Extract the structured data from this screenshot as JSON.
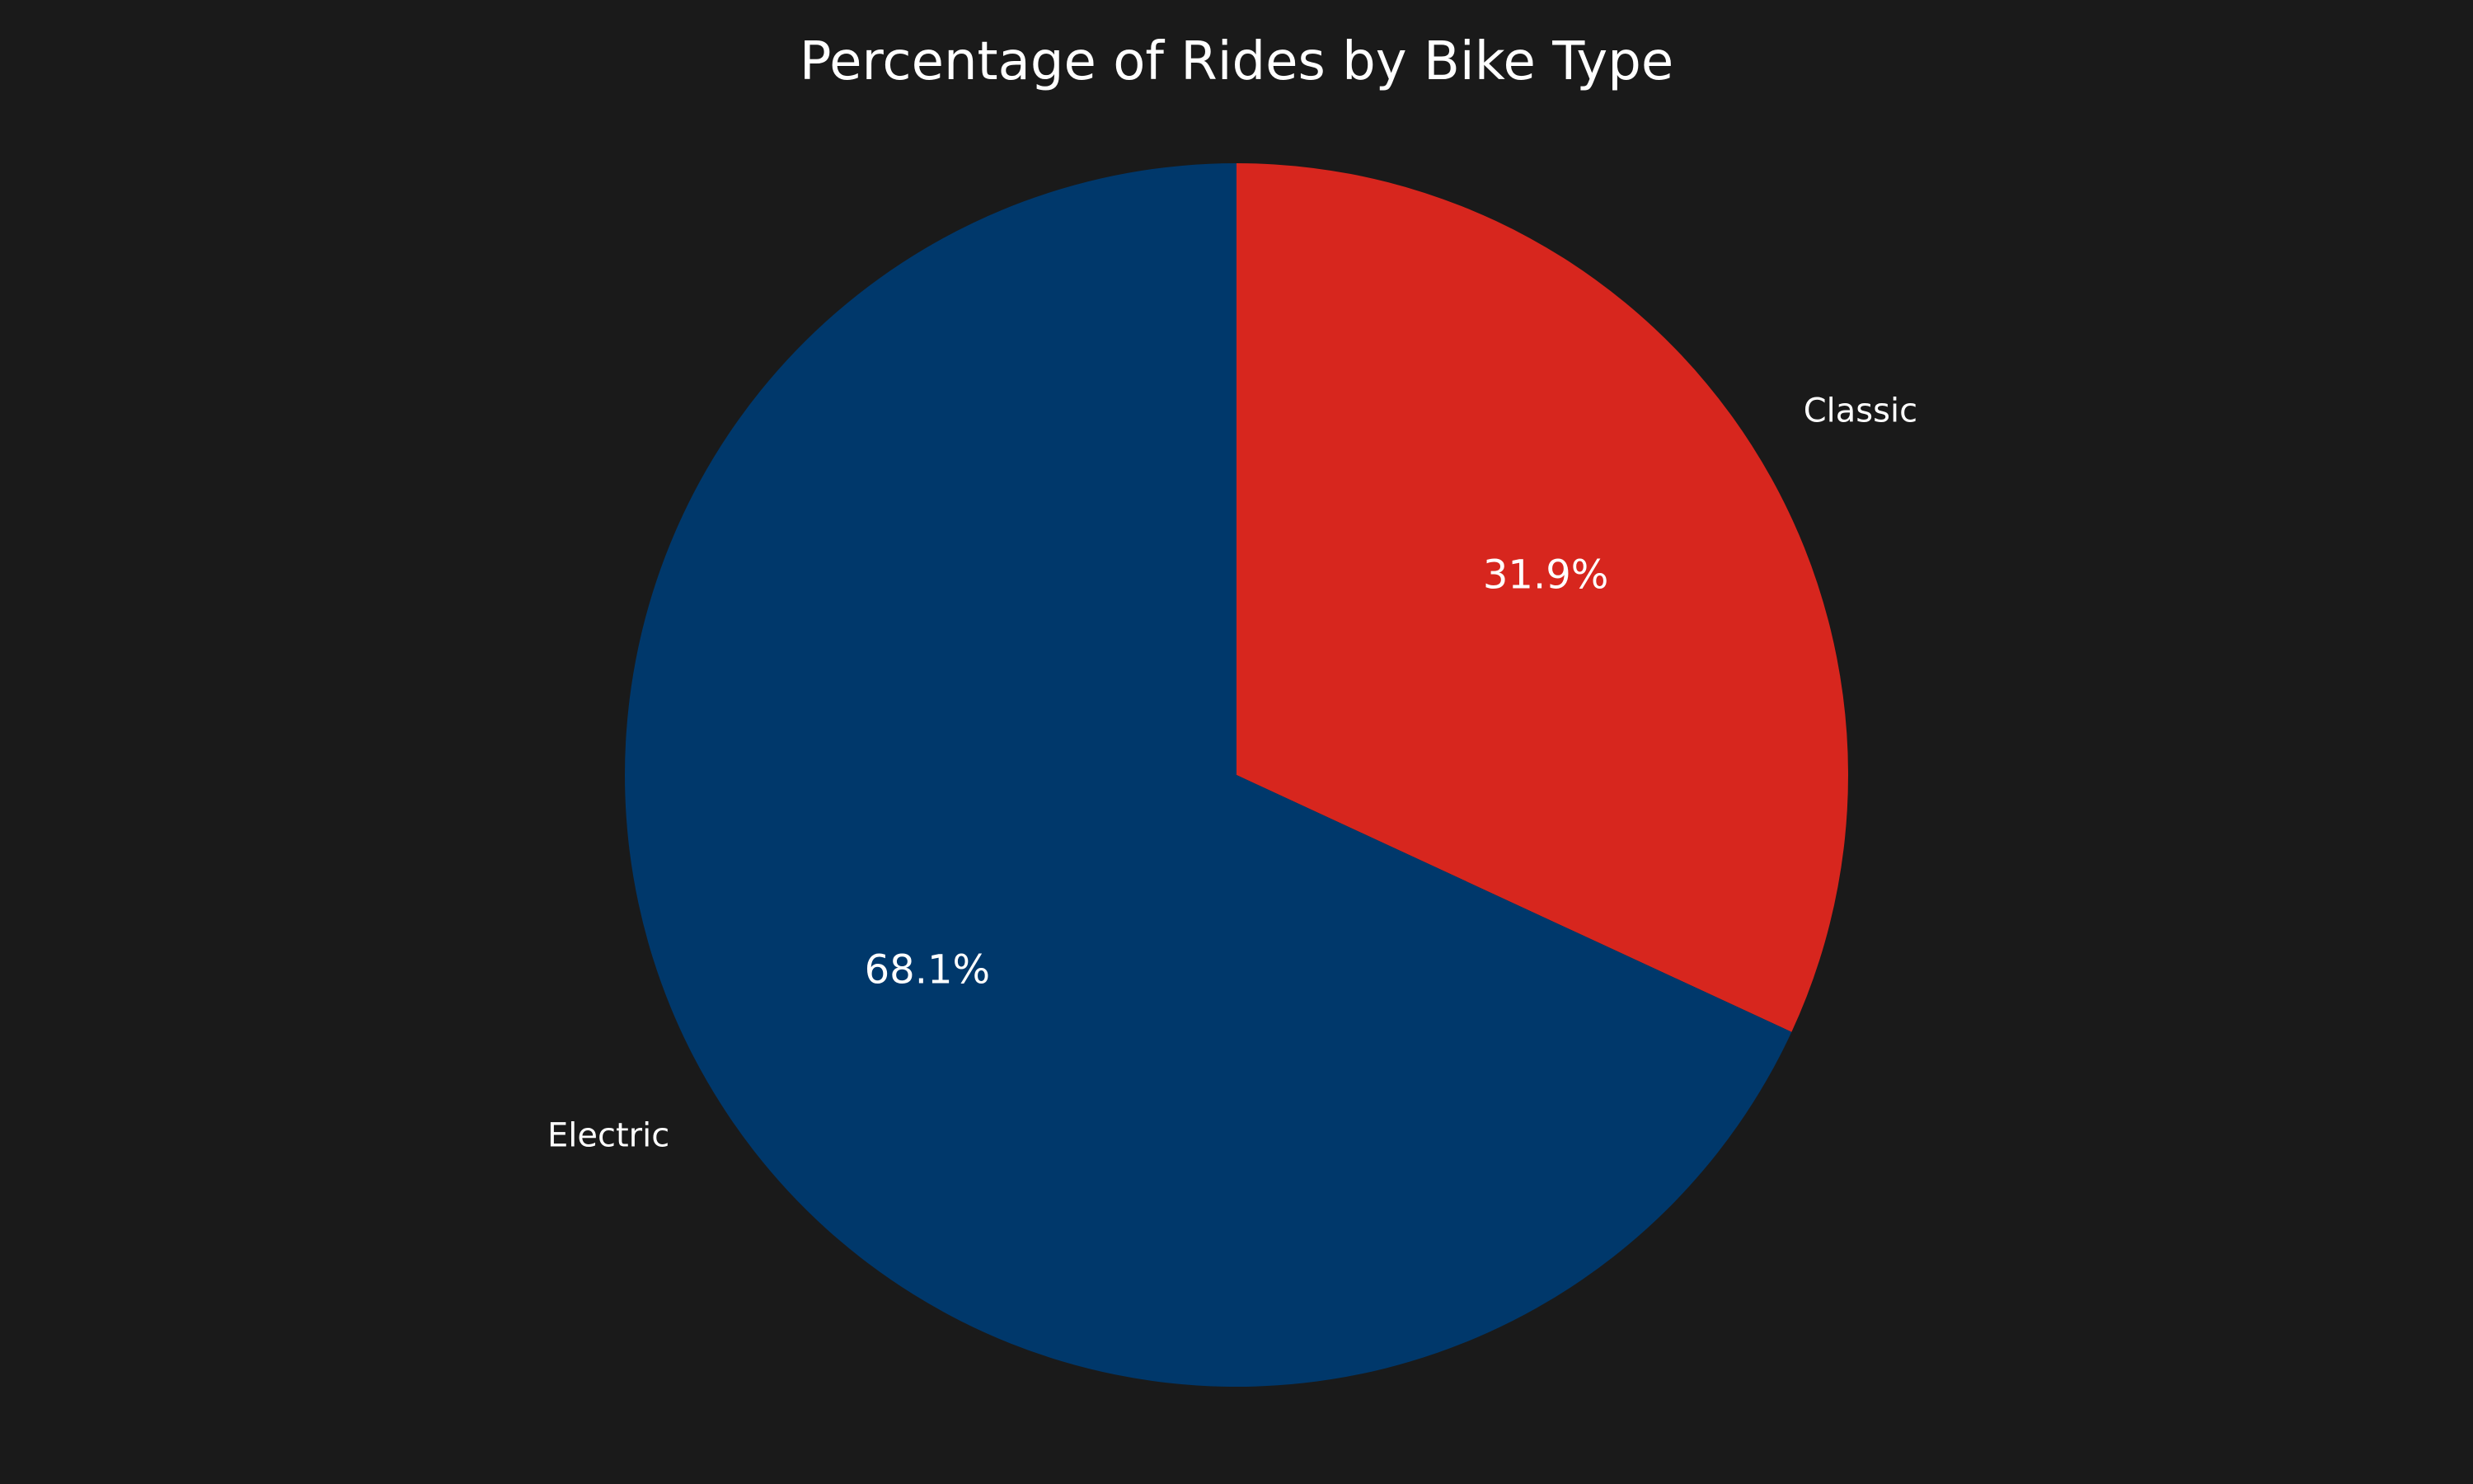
{
  "chart_data": {
    "type": "pie",
    "title": "Percentage of Rides by Bike Type",
    "start_angle": "top",
    "direction": "clockwise",
    "slices": [
      {
        "label": "Classic",
        "value": 31.9,
        "pct_label": "31.9%",
        "color": "#d7261e"
      },
      {
        "label": "Electric",
        "value": 68.1,
        "pct_label": "68.1%",
        "color": "#00386b"
      }
    ],
    "legend": "none",
    "background_color": "#1a1a1a",
    "text_color": "#ffffff"
  }
}
